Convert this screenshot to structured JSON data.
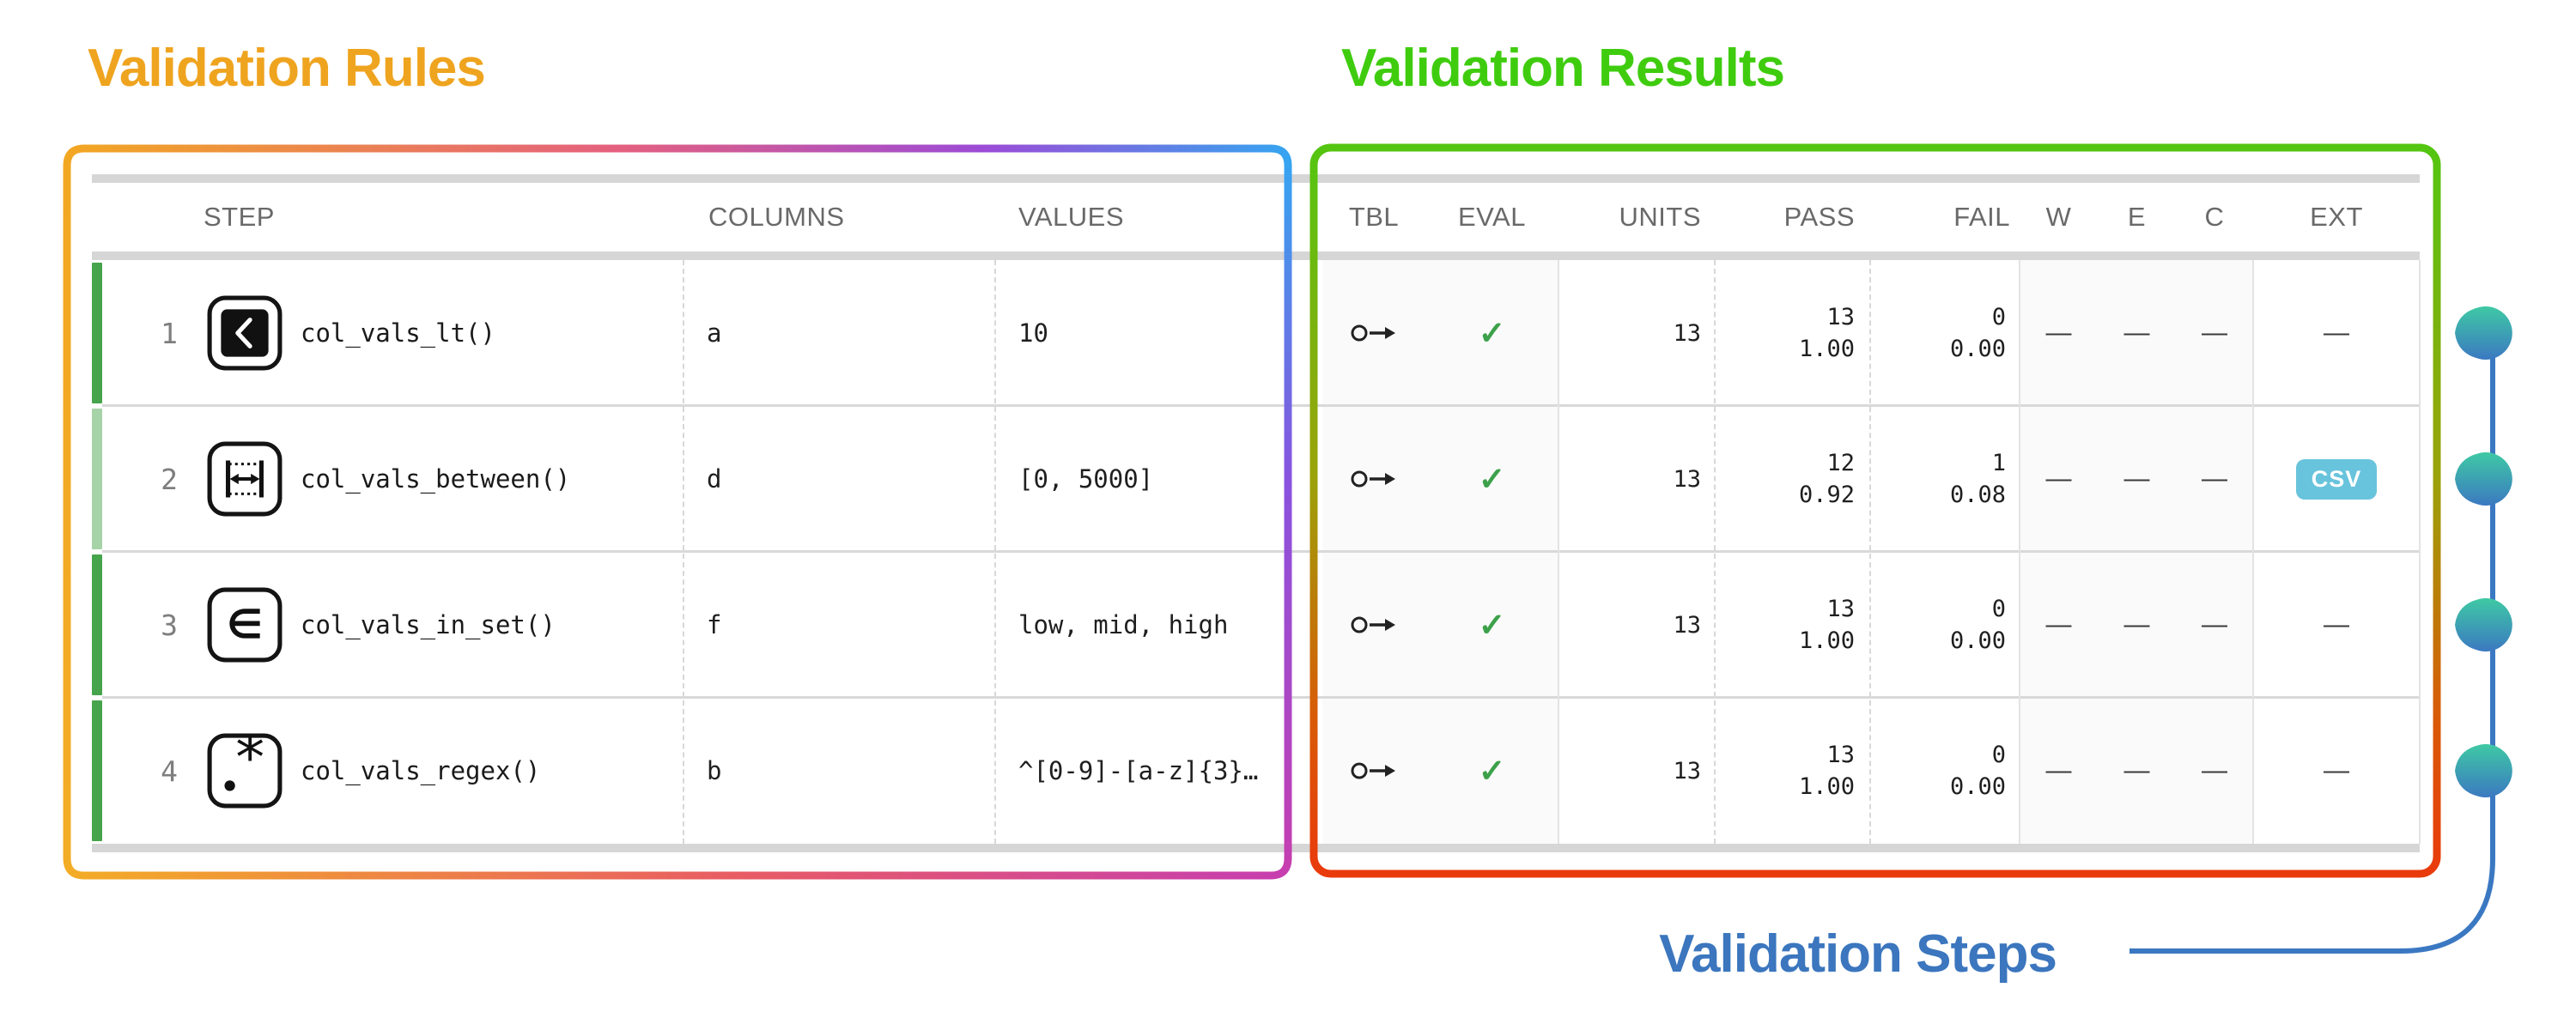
{
  "titles": {
    "rules": "Validation Rules",
    "results": "Validation Results",
    "steps": "Validation Steps"
  },
  "colors": {
    "rules_title": "#EFA41F",
    "results_title": "#3FCC0F",
    "steps_title": "#3B76BE",
    "bar_full": "#46A44C",
    "bar_light": "#A6D3A8",
    "check": "#3CA14A",
    "csv_badge_bg": "#68C4DC",
    "csv_badge_text": "#FFFFFF",
    "marker_top": "#3FC9A4",
    "marker_bottom": "#3B79C1",
    "connector": "#3B78C2",
    "rules_box_gradient": [
      "#F2A722",
      "#E4607E",
      "#9C4BD6",
      "#36A4F0"
    ],
    "results_box_gradient": [
      "#54C511",
      "#9AA30A",
      "#D85B07",
      "#E93A0C"
    ]
  },
  "table": {
    "headers": [
      "STEP",
      "COLUMNS",
      "VALUES",
      "TBL",
      "EVAL",
      "UNITS",
      "PASS",
      "FAIL",
      "W",
      "E",
      "C",
      "EXT"
    ],
    "rows": [
      {
        "step": "1",
        "icon": "less-than",
        "fn": "col_vals_lt()",
        "columns": "a",
        "values": "10",
        "tbl_icon": "circle-arrow",
        "eval": "✓",
        "units": "13",
        "pass": [
          "13",
          "1.00"
        ],
        "fail": [
          "0",
          "0.00"
        ],
        "w": "—",
        "e": "—",
        "c": "—",
        "ext": "—",
        "ext_badge": null,
        "bar": "full"
      },
      {
        "step": "2",
        "icon": "between",
        "fn": "col_vals_between()",
        "columns": "d",
        "values": "[0, 5000]",
        "tbl_icon": "circle-arrow",
        "eval": "✓",
        "units": "13",
        "pass": [
          "12",
          "0.92"
        ],
        "fail": [
          "1",
          "0.08"
        ],
        "w": "—",
        "e": "—",
        "c": "—",
        "ext": "",
        "ext_badge": "CSV",
        "bar": "light"
      },
      {
        "step": "3",
        "icon": "in-set",
        "fn": "col_vals_in_set()",
        "columns": "f",
        "values": "low, mid, high",
        "tbl_icon": "circle-arrow",
        "eval": "✓",
        "units": "13",
        "pass": [
          "13",
          "1.00"
        ],
        "fail": [
          "0",
          "0.00"
        ],
        "w": "—",
        "e": "—",
        "c": "—",
        "ext": "—",
        "ext_badge": null,
        "bar": "full"
      },
      {
        "step": "4",
        "icon": "regex",
        "fn": "col_vals_regex()",
        "columns": "b",
        "values": "^[0-9]-[a-z]{3}…",
        "tbl_icon": "circle-arrow",
        "eval": "✓",
        "units": "13",
        "pass": [
          "13",
          "1.00"
        ],
        "fail": [
          "0",
          "0.00"
        ],
        "w": "—",
        "e": "—",
        "c": "—",
        "ext": "—",
        "ext_badge": null,
        "bar": "full"
      }
    ]
  }
}
